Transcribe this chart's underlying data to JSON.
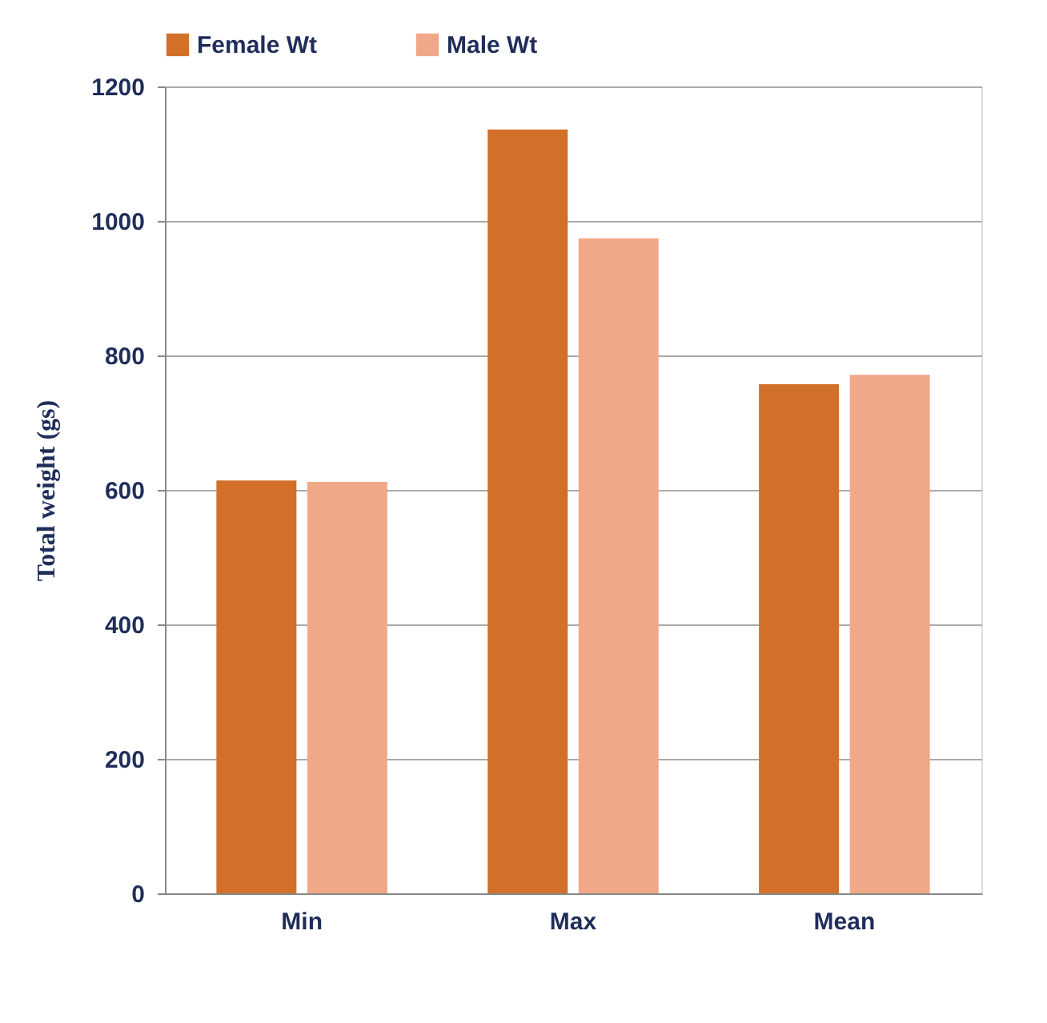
{
  "chart_data": {
    "type": "bar",
    "ylabel": "Total weight (gs)",
    "categories": [
      "Min",
      "Max",
      "Mean"
    ],
    "series": [
      {
        "name": "Female Wt",
        "color": "#d2702a",
        "values": [
          614,
          1136,
          757
        ]
      },
      {
        "name": "Male Wt",
        "color": "#f0a888",
        "values": [
          612,
          974,
          771
        ]
      }
    ],
    "ylim": [
      0,
      1200
    ],
    "yticks": [
      0,
      200,
      400,
      600,
      800,
      1000,
      1200
    ],
    "grid": "y",
    "legend": "top"
  }
}
